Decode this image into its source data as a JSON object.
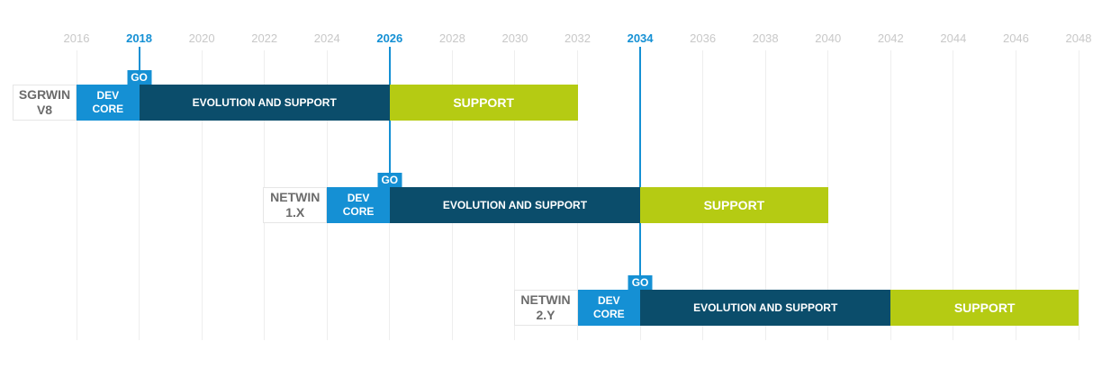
{
  "chart_data": {
    "type": "gantt",
    "categories": [
      "SGRWIN V8",
      "NETWIN 1.X",
      "NETWIN 2.Y"
    ],
    "series": [
      {
        "name": "DEV CORE",
        "color": "#1590d4",
        "start": [
          2016,
          2024,
          2032
        ],
        "end": [
          2018,
          2026,
          2034
        ]
      },
      {
        "name": "EVOLUTION AND SUPPORT",
        "color": "#0b4d6b",
        "start": [
          2018,
          2026,
          2034
        ],
        "end": [
          2026,
          2034,
          2042
        ]
      },
      {
        "name": "SUPPORT",
        "color": "#b5cb13",
        "start": [
          2026,
          2034,
          2042
        ],
        "end": [
          2032,
          2040,
          2048
        ]
      }
    ],
    "milestones": [
      {
        "label": "GO",
        "value": 2018
      },
      {
        "label": "GO",
        "value": 2026
      },
      {
        "label": "GO",
        "value": 2034
      }
    ],
    "xlim": [
      2016,
      2048
    ],
    "xticks": [
      2016,
      2018,
      2020,
      2022,
      2024,
      2026,
      2028,
      2030,
      2032,
      2034,
      2036,
      2038,
      2040,
      2042,
      2044,
      2046,
      2048
    ],
    "grid": true
  }
}
